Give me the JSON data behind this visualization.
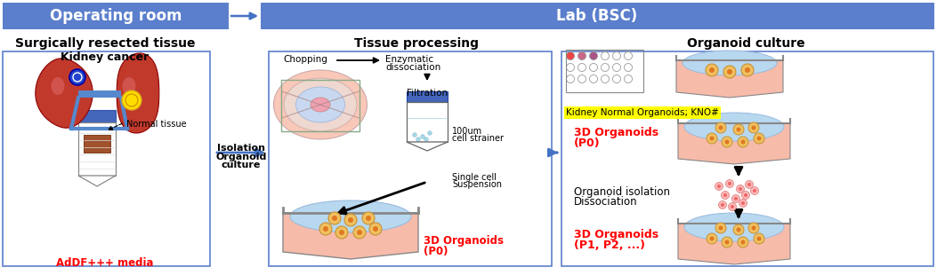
{
  "fig_width": 10.53,
  "fig_height": 3.1,
  "dpi": 100,
  "bg_color": "#ffffff",
  "header_color": "#5B7FCC",
  "header_text_color": "#ffffff",
  "header_font_size": 12,
  "box_border_color": "#5B7FCC",
  "title_font_size": 10,
  "body_font_size": 7.5,
  "small_font_size": 7,
  "red_color": "#FF0000",
  "black_color": "#000000",
  "blue_color": "#4472C4",
  "light_pink": "#F4AAAA",
  "light_blue": "#AACCEE",
  "pale_orange": "#F7C080",
  "light_salmon": "#F4AAAA",
  "orange_gold": "#E8A030",
  "yellow": "#FFFF00",
  "gray": "#888888",
  "dark_gray": "#555555",
  "header_left_label": "Operating room",
  "header_right_label": "Lab (BSC)",
  "section1_title": "Surgically resected tissue",
  "section2_title": "Tissue processing",
  "section3_title": "Organoid culture",
  "kno_label": "Kidney Normal Organoids; KNO#",
  "kidney_cancer_label": "Kidney cancer",
  "normal_tissue_label": "Normal tissue",
  "addf_label": "AdDF+++ media",
  "isolation_label_a": "Isolation",
  "isolation_label_b": "Organoid",
  "isolation_label_c": "culture",
  "chopping_label": "Chopping",
  "enzymatic_label_a": "Enzymatic",
  "enzymatic_label_b": "dissociation",
  "filtration_label": "Filtration",
  "strainer_label_a": "100um",
  "strainer_label_b": "cell strainer",
  "single_cell_label_a": "Single cell",
  "single_cell_label_b": "Suspension",
  "organoids_p0_label_a": "3D Organoids",
  "organoids_p0_label_b": "(P0)",
  "step1_label_a": "3D Organoids",
  "step1_label_b": "(P0)",
  "step2_label_a": "Organoid isolation",
  "step2_label_b": "Dissociation",
  "step3_label_a": "3D Organoids",
  "step3_label_b": "(P1, P2, ...)"
}
